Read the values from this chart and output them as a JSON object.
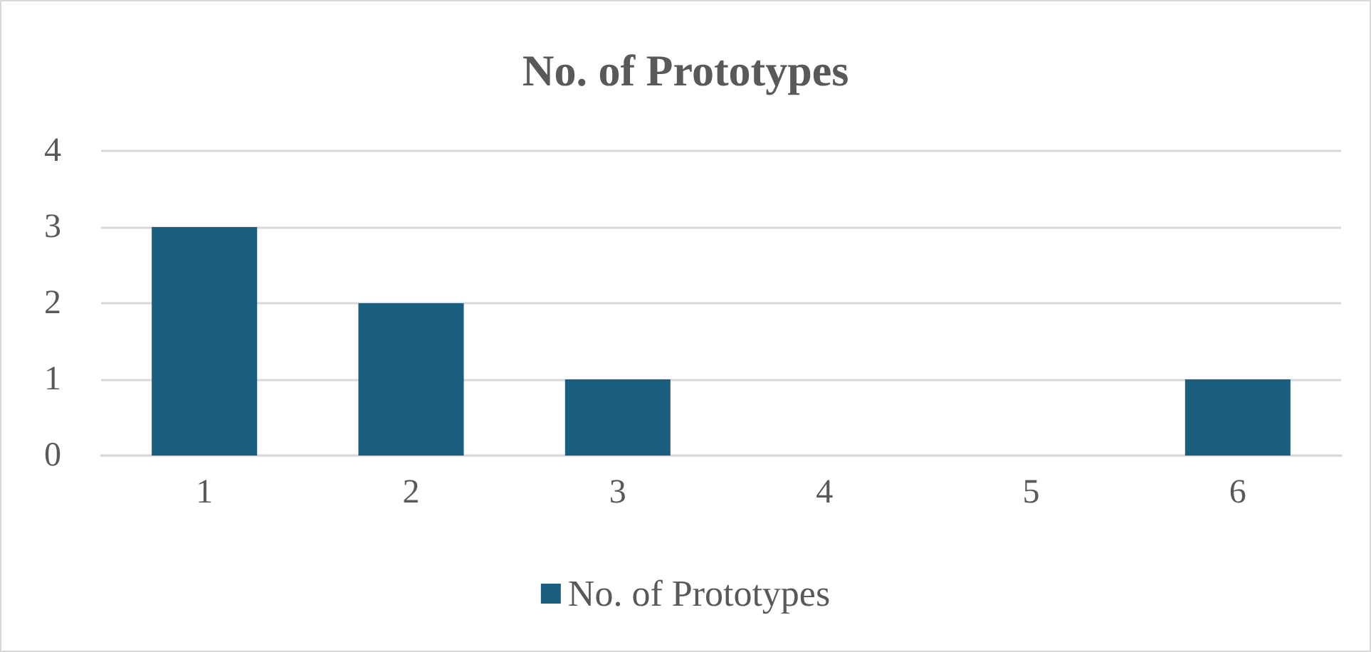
{
  "chart_data": {
    "type": "bar",
    "title": "No. of Prototypes",
    "categories": [
      "1",
      "2",
      "3",
      "4",
      "5",
      "6"
    ],
    "series": [
      {
        "name": "No. of Prototypes",
        "color": "#1b5f80",
        "values": [
          3,
          2,
          1,
          0,
          0,
          1
        ]
      }
    ],
    "ylim": [
      0,
      4
    ],
    "yticks": [
      0,
      1,
      2,
      3,
      4
    ],
    "grid": "y",
    "legend": "bottom"
  }
}
